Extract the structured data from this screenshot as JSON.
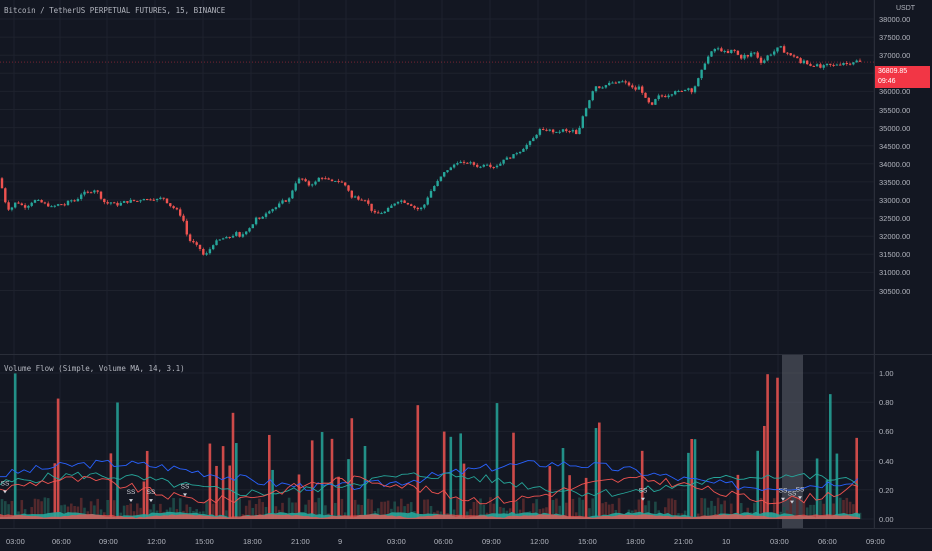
{
  "chart": {
    "title": "Bitcoin / TetherUS PERPETUAL FUTURES, 15, BINANCE",
    "currency": "USDT",
    "last_price": "36809.85",
    "countdown": "09:46",
    "price_axis": [
      "38000.00",
      "37500.00",
      "37000.00",
      "36500.00",
      "36000.00",
      "35500.00",
      "35000.00",
      "34500.00",
      "34000.00",
      "33500.00",
      "33000.00",
      "32500.00",
      "32000.00",
      "31500.00",
      "31000.00",
      "30500.00"
    ],
    "time_axis": [
      "03:00",
      "06:00",
      "09:00",
      "12:00",
      "15:00",
      "18:00",
      "21:00",
      "9",
      "03:00",
      "06:00",
      "09:00",
      "12:00",
      "15:00",
      "18:00",
      "21:00",
      "10",
      "03:00",
      "06:00",
      "09:00"
    ]
  },
  "indicator": {
    "title": "Volume Flow (Simple, Volume MA, 14, 3.1)",
    "axis": [
      "1.00",
      "0.80",
      "0.60",
      "0.40",
      "0.20",
      "0.00"
    ],
    "signal_text": "SS"
  },
  "chart_data": {
    "type": "candlestick",
    "title": "Bitcoin / TetherUS PERPETUAL FUTURES, 15, BINANCE",
    "ylim": [
      30500,
      38000
    ],
    "close_path": [
      [
        0,
        33600
      ],
      [
        4,
        33050
      ],
      [
        8,
        32750
      ],
      [
        12,
        32800
      ],
      [
        16,
        32950
      ],
      [
        20,
        32900
      ],
      [
        24,
        32800
      ],
      [
        28,
        32850
      ],
      [
        32,
        32950
      ],
      [
        36,
        33000
      ],
      [
        40,
        32950
      ],
      [
        44,
        32900
      ],
      [
        48,
        32850
      ],
      [
        52,
        32800
      ],
      [
        56,
        32850
      ],
      [
        60,
        32900
      ],
      [
        64,
        32850
      ],
      [
        68,
        32950
      ],
      [
        72,
        33000
      ],
      [
        76,
        32950
      ],
      [
        80,
        33150
      ],
      [
        84,
        33200
      ],
      [
        88,
        33200
      ],
      [
        92,
        33250
      ],
      [
        96,
        33300
      ],
      [
        100,
        33100
      ],
      [
        104,
        32950
      ],
      [
        108,
        32900
      ],
      [
        112,
        32950
      ],
      [
        116,
        32850
      ],
      [
        120,
        32900
      ],
      [
        124,
        32950
      ],
      [
        128,
        32950
      ],
      [
        132,
        33000
      ],
      [
        136,
        32950
      ],
      [
        140,
        33000
      ],
      [
        144,
        33050
      ],
      [
        148,
        33000
      ],
      [
        152,
        33050
      ],
      [
        156,
        33000
      ],
      [
        160,
        33050
      ],
      [
        164,
        33050
      ],
      [
        168,
        32900
      ],
      [
        172,
        32800
      ],
      [
        176,
        32750
      ],
      [
        180,
        32600
      ],
      [
        184,
        32400
      ],
      [
        188,
        31900
      ],
      [
        192,
        31850
      ],
      [
        196,
        31750
      ],
      [
        200,
        31650
      ],
      [
        204,
        31450
      ],
      [
        208,
        31550
      ],
      [
        212,
        31750
      ],
      [
        216,
        31850
      ],
      [
        220,
        31900
      ],
      [
        224,
        31950
      ],
      [
        228,
        31950
      ],
      [
        232,
        32000
      ],
      [
        236,
        32100
      ],
      [
        240,
        31950
      ],
      [
        244,
        32100
      ],
      [
        248,
        32200
      ],
      [
        252,
        32300
      ],
      [
        256,
        32500
      ],
      [
        260,
        32450
      ],
      [
        264,
        32600
      ],
      [
        268,
        32700
      ],
      [
        272,
        32750
      ],
      [
        276,
        32800
      ],
      [
        280,
        32900
      ],
      [
        284,
        33000
      ],
      [
        288,
        32950
      ],
      [
        292,
        33250
      ],
      [
        296,
        33500
      ],
      [
        300,
        33600
      ],
      [
        304,
        33550
      ],
      [
        308,
        33400
      ],
      [
        312,
        33450
      ],
      [
        316,
        33500
      ],
      [
        320,
        33650
      ],
      [
        324,
        33600
      ],
      [
        328,
        33550
      ],
      [
        332,
        33500
      ],
      [
        336,
        33550
      ],
      [
        340,
        33500
      ],
      [
        344,
        33450
      ],
      [
        348,
        33300
      ],
      [
        352,
        33050
      ],
      [
        356,
        33100
      ],
      [
        360,
        33000
      ],
      [
        364,
        33050
      ],
      [
        368,
        32900
      ],
      [
        372,
        32700
      ],
      [
        376,
        32600
      ],
      [
        380,
        32650
      ],
      [
        384,
        32650
      ],
      [
        388,
        32750
      ],
      [
        392,
        32850
      ],
      [
        396,
        32950
      ],
      [
        400,
        33000
      ],
      [
        404,
        32950
      ],
      [
        408,
        32900
      ],
      [
        412,
        32850
      ],
      [
        416,
        32750
      ],
      [
        420,
        32750
      ],
      [
        424,
        32850
      ],
      [
        428,
        33100
      ],
      [
        432,
        33300
      ],
      [
        436,
        33450
      ],
      [
        440,
        33600
      ],
      [
        444,
        33750
      ],
      [
        448,
        33850
      ],
      [
        452,
        33900
      ],
      [
        456,
        34050
      ],
      [
        460,
        34050
      ],
      [
        464,
        34000
      ],
      [
        468,
        34050
      ],
      [
        472,
        34000
      ],
      [
        476,
        33950
      ],
      [
        480,
        33900
      ],
      [
        484,
        34000
      ],
      [
        488,
        34000
      ],
      [
        492,
        33900
      ],
      [
        496,
        33950
      ],
      [
        500,
        34000
      ],
      [
        504,
        34150
      ],
      [
        508,
        34150
      ],
      [
        512,
        34200
      ],
      [
        516,
        34300
      ],
      [
        520,
        34350
      ],
      [
        524,
        34450
      ],
      [
        528,
        34550
      ],
      [
        532,
        34650
      ],
      [
        536,
        34800
      ],
      [
        540,
        34950
      ],
      [
        544,
        34900
      ],
      [
        548,
        34950
      ],
      [
        552,
        34900
      ],
      [
        556,
        34850
      ],
      [
        560,
        34900
      ],
      [
        564,
        34950
      ],
      [
        568,
        34850
      ],
      [
        572,
        34950
      ],
      [
        576,
        34800
      ],
      [
        580,
        35000
      ],
      [
        584,
        35450
      ],
      [
        588,
        35650
      ],
      [
        592,
        36000
      ],
      [
        596,
        36150
      ],
      [
        600,
        36100
      ],
      [
        604,
        36150
      ],
      [
        608,
        36200
      ],
      [
        612,
        36250
      ],
      [
        616,
        36200
      ],
      [
        620,
        36300
      ],
      [
        624,
        36250
      ],
      [
        628,
        36200
      ],
      [
        632,
        36100
      ],
      [
        636,
        36050
      ],
      [
        640,
        36150
      ],
      [
        644,
        35850
      ],
      [
        648,
        35700
      ],
      [
        652,
        35600
      ],
      [
        656,
        35800
      ],
      [
        660,
        35900
      ],
      [
        664,
        35850
      ],
      [
        668,
        35900
      ],
      [
        672,
        35950
      ],
      [
        676,
        36050
      ],
      [
        680,
        35950
      ],
      [
        684,
        36050
      ],
      [
        688,
        36100
      ],
      [
        692,
        36000
      ],
      [
        696,
        36200
      ],
      [
        700,
        36450
      ],
      [
        704,
        36750
      ],
      [
        708,
        36950
      ],
      [
        712,
        37100
      ],
      [
        716,
        37200
      ],
      [
        720,
        37150
      ],
      [
        724,
        37100
      ],
      [
        728,
        37050
      ],
      [
        732,
        37150
      ],
      [
        736,
        37100
      ],
      [
        740,
        36900
      ],
      [
        744,
        37000
      ],
      [
        748,
        36950
      ],
      [
        752,
        37100
      ],
      [
        756,
        37050
      ],
      [
        760,
        36800
      ],
      [
        764,
        36850
      ],
      [
        768,
        37000
      ],
      [
        772,
        37050
      ],
      [
        776,
        37150
      ],
      [
        780,
        37250
      ],
      [
        784,
        37100
      ],
      [
        788,
        37050
      ],
      [
        792,
        36950
      ],
      [
        796,
        37000
      ],
      [
        800,
        36750
      ],
      [
        804,
        36850
      ],
      [
        808,
        36750
      ],
      [
        812,
        36700
      ],
      [
        816,
        36750
      ],
      [
        820,
        36650
      ],
      [
        824,
        36700
      ],
      [
        828,
        36750
      ],
      [
        832,
        36700
      ],
      [
        836,
        36750
      ],
      [
        840,
        36750
      ],
      [
        844,
        36800
      ],
      [
        848,
        36750
      ],
      [
        852,
        36800
      ],
      [
        856,
        36850
      ],
      [
        860,
        36810
      ]
    ],
    "indicator_ylim": [
      0,
      1
    ]
  }
}
